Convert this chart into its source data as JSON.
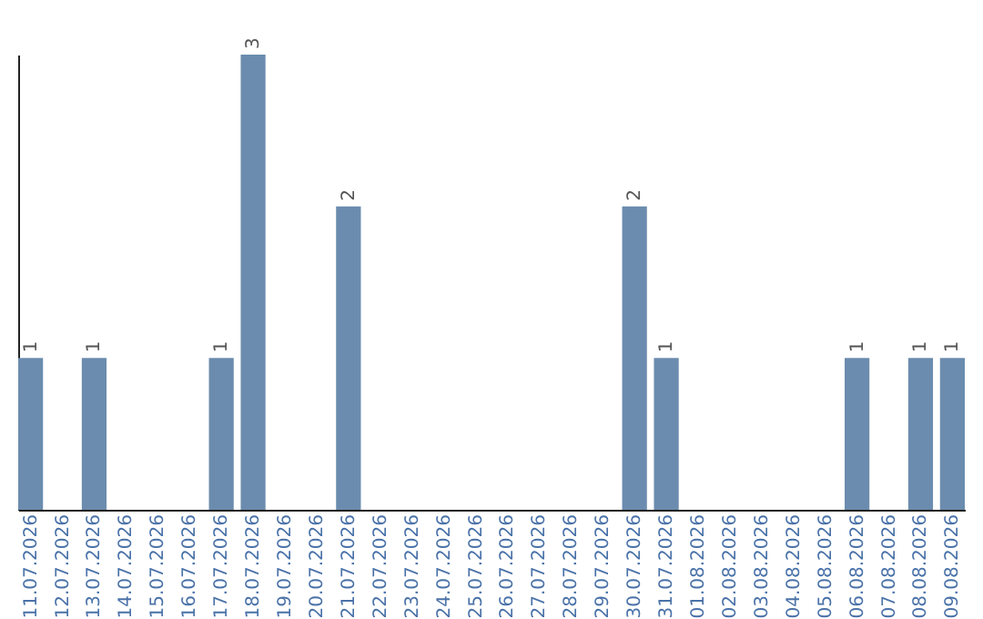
{
  "chart_data": {
    "type": "bar",
    "categories": [
      "11.07.2026",
      "12.07.2026",
      "13.07.2026",
      "14.07.2026",
      "15.07.2026",
      "16.07.2026",
      "17.07.2026",
      "18.07.2026",
      "19.07.2026",
      "20.07.2026",
      "21.07.2026",
      "22.07.2026",
      "23.07.2026",
      "24.07.2026",
      "25.07.2026",
      "26.07.2026",
      "27.07.2026",
      "28.07.2026",
      "29.07.2026",
      "30.07.2026",
      "31.07.2026",
      "01.08.2026",
      "02.08.2026",
      "03.08.2026",
      "04.08.2026",
      "05.08.2026",
      "06.08.2026",
      "07.08.2026",
      "08.08.2026",
      "09.08.2026"
    ],
    "values": [
      1,
      0,
      1,
      0,
      0,
      0,
      1,
      3,
      0,
      0,
      2,
      0,
      0,
      0,
      0,
      0,
      0,
      0,
      0,
      2,
      1,
      0,
      0,
      0,
      0,
      0,
      1,
      0,
      1,
      1
    ],
    "value_labels": [
      "1",
      null,
      "1",
      null,
      null,
      null,
      "1",
      "3",
      null,
      null,
      "2",
      null,
      null,
      null,
      null,
      null,
      null,
      null,
      null,
      "2",
      "1",
      null,
      null,
      null,
      null,
      null,
      "1",
      null,
      "1",
      "1"
    ],
    "color": "#6b8cae",
    "grid": false,
    "tick_labels": "x"
  }
}
